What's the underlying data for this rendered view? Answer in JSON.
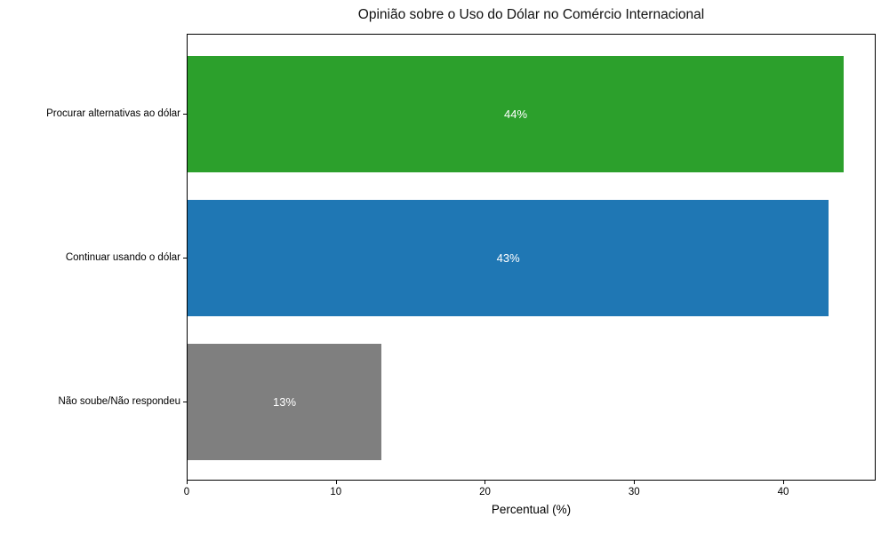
{
  "title": "Opinião sobre o Uso do Dólar no Comércio Internacional",
  "chart_data": {
    "type": "bar",
    "orientation": "horizontal",
    "title": "Opinião sobre o Uso do Dólar no Comércio Internacional",
    "categories": [
      "Procurar alternativas ao dólar",
      "Continuar usando o dólar",
      "Não soube/Não respondeu"
    ],
    "values": [
      44,
      43,
      13
    ],
    "value_labels": [
      "44%",
      "43%",
      "13%"
    ],
    "bar_colors": [
      "#2ca02c",
      "#1f77b4",
      "#7f7f7f"
    ],
    "value_label_color": "#ffffff",
    "xlabel": "Percentual (%)",
    "ylabel": "",
    "xlim": [
      0,
      46.2
    ],
    "x_ticks": [
      0,
      10,
      20,
      30,
      40
    ],
    "grid": false,
    "legend": null,
    "plot_background": "#ffffff",
    "spine_color": "#000000"
  }
}
